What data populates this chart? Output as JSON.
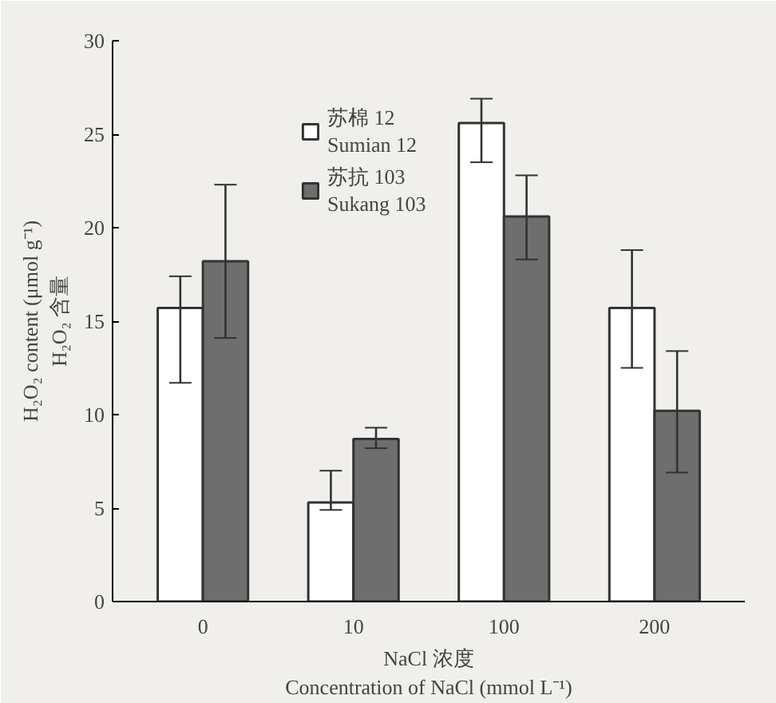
{
  "chart_data": {
    "type": "bar",
    "categories": [
      "0",
      "10",
      "100",
      "200"
    ],
    "xlabel": "NaCl 浓度\nConcentration of NaCl (mmol L⁻¹)",
    "ylabel": "H₂O₂ content (μmol g⁻¹)\nH₂O₂ 含量",
    "ylim": [
      0,
      30
    ],
    "yticks": [
      0,
      5,
      10,
      15,
      20,
      25,
      30
    ],
    "grid": false,
    "legend": "top left",
    "series": [
      {
        "name": "苏棉 12\nSumian 12",
        "color": "#ffffff",
        "values": [
          15.7,
          5.3,
          25.6,
          15.7
        ],
        "errors": [
          [
            11.7,
            17.4
          ],
          [
            4.9,
            7.0
          ],
          [
            23.5,
            26.9
          ],
          [
            12.5,
            18.8
          ]
        ]
      },
      {
        "name": "苏抗 103\nSukang 103",
        "color": "#6e6e6e",
        "values": [
          18.2,
          8.7,
          20.6,
          10.2
        ],
        "errors": [
          [
            14.1,
            22.3
          ],
          [
            8.2,
            9.3
          ],
          [
            18.3,
            22.8
          ],
          [
            6.9,
            13.4
          ]
        ]
      }
    ]
  }
}
